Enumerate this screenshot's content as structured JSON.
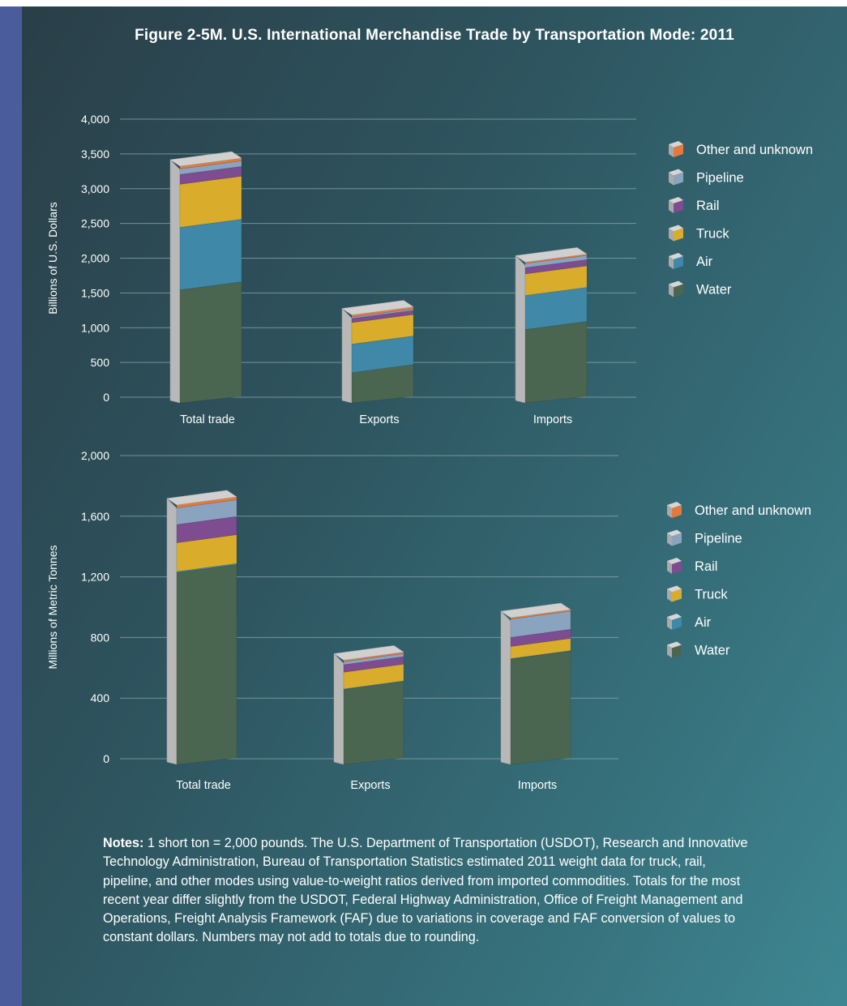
{
  "title": "Figure 2-5M. U.S. International Merchandise Trade by Transportation Mode: 2011",
  "colors": {
    "Water": "#4b6650",
    "Air": "#3f88a8",
    "Truck": "#d9ac2c",
    "Rail": "#7e4c90",
    "Pipeline": "#8aa4c0",
    "Other and unknown": "#e27a3e",
    "bar_side": "#b8b8b8",
    "bar_top": "#d0d0d0"
  },
  "chart_data": [
    {
      "type": "bar",
      "stacked": true,
      "ylabel": "Billions of U.S. Dollars",
      "ylim": [
        0,
        4000
      ],
      "yticks": [
        "0",
        "500",
        "1,000",
        "1,500",
        "2,000",
        "2,500",
        "3,000",
        "3,500",
        "4,000"
      ],
      "categories": [
        "Total trade",
        "Exports",
        "Imports"
      ],
      "grid": true,
      "legend": "right",
      "series": [
        {
          "name": "Water",
          "values": [
            1660,
            470,
            1090
          ]
        },
        {
          "name": "Air",
          "values": [
            900,
            410,
            490
          ]
        },
        {
          "name": "Truck",
          "values": [
            620,
            310,
            310
          ]
        },
        {
          "name": "Rail",
          "values": [
            140,
            60,
            90
          ]
        },
        {
          "name": "Pipeline",
          "values": [
            80,
            20,
            60
          ]
        },
        {
          "name": "Other and unknown",
          "values": [
            40,
            30,
            20
          ]
        }
      ]
    },
    {
      "type": "bar",
      "stacked": true,
      "ylabel": "Millions of Metric Tonnes",
      "ylim": [
        0,
        2000
      ],
      "yticks": [
        "0",
        "400",
        "800",
        "1,200",
        "1,600",
        "2,000"
      ],
      "categories": [
        "Total trade",
        "Exports",
        "Imports"
      ],
      "grid": true,
      "legend": "right",
      "series": [
        {
          "name": "Water",
          "values": [
            1280,
            510,
            710
          ]
        },
        {
          "name": "Air",
          "values": [
            8,
            4,
            4
          ]
        },
        {
          "name": "Truck",
          "values": [
            190,
            110,
            80
          ]
        },
        {
          "name": "Rail",
          "values": [
            120,
            50,
            60
          ]
        },
        {
          "name": "Pipeline",
          "values": [
            110,
            20,
            120
          ]
        },
        {
          "name": "Other and unknown",
          "values": [
            20,
            10,
            10
          ]
        }
      ]
    }
  ],
  "legend_order": [
    "Other and unknown",
    "Pipeline",
    "Rail",
    "Truck",
    "Air",
    "Water"
  ],
  "notes": {
    "label": "Notes:",
    "text": " 1 short ton = 2,000 pounds. The U.S. Department of Transportation (USDOT), Research and Innovative Technology Administration, Bureau of Transportation Statistics estimated 2011 weight data for truck, rail, pipeline, and other modes using value-to-weight ratios derived from imported commodities. Totals for the most recent year differ slightly from the USDOT, Federal Highway Administration, Office of Freight Management and Operations, Freight Analysis Framework (FAF) due to variations in coverage and FAF conversion of values to constant dollars. Numbers may not add to totals due to rounding."
  }
}
